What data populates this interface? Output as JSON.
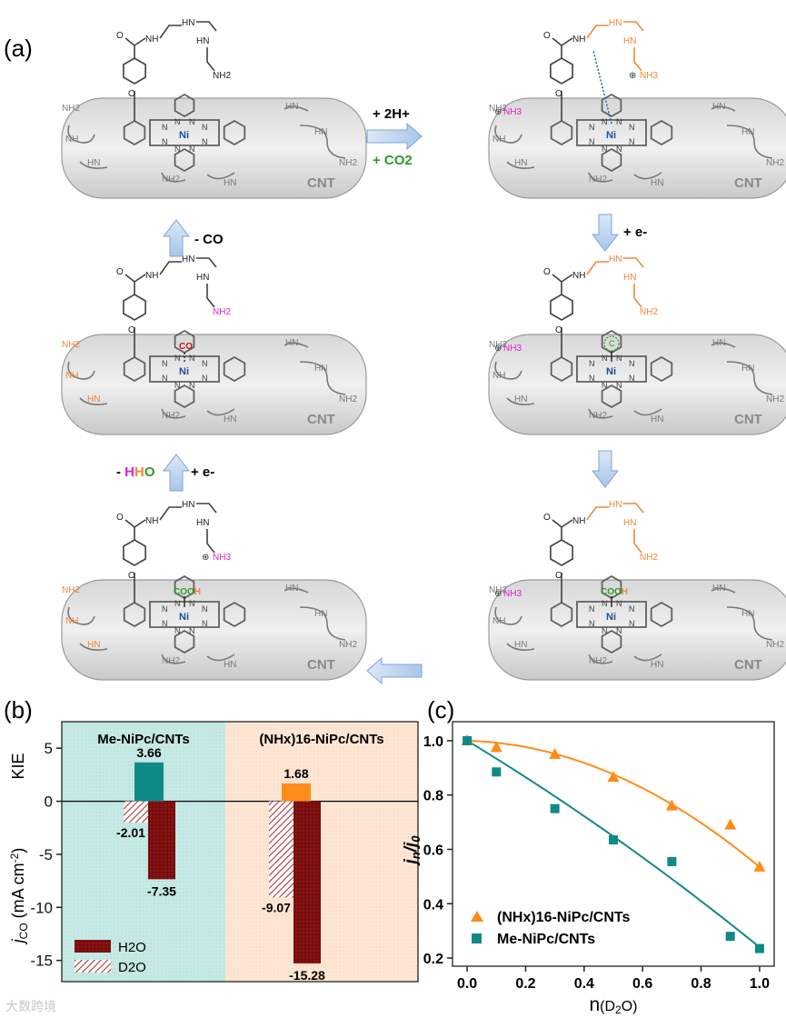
{
  "panel_a": {
    "label": "(a)",
    "cnt_label": "CNT",
    "ni": "Ni",
    "nh2": "NH2",
    "hn": "HN",
    "nh": "NH",
    "nh3": "NH3",
    "oxygen": "O",
    "co": "CO",
    "cooh_c": "COO",
    "cooh_h": "H",
    "h": "H",
    "n": "N",
    "c": "C",
    "step1_line1": "+ 2H+",
    "step1_line2": "+ CO2",
    "step2": "+ e-",
    "step_co": "- CO",
    "step_hho_minus": "- ",
    "step_hho_h1": "H",
    "step_hho_h2": "H",
    "step_hho_o": "O",
    "step_hho_e": "+ e-",
    "colors": {
      "orange": "#f0883a",
      "magenta": "#e020d0",
      "green": "#2a9a2a",
      "red": "#cc1111",
      "blue": "#1f4e99"
    }
  },
  "panel_b": {
    "label": "(b)",
    "group1": "Me-NiPc/CNTs",
    "group2": "(NHx)16-NiPc/CNTs",
    "kie_axis": "KIE",
    "j_axis": "jCO (mA cm-2)",
    "legend_h2o": "H2O",
    "legend_d2o": "D2O",
    "colors": {
      "kie1": "#108a86",
      "kie2": "#ff8c1a",
      "h2o": "#7a0d0d",
      "d2o": "#c05a5a",
      "bg1": "#bfe6e2",
      "bg2": "#fde3cf"
    }
  },
  "panel_c": {
    "label": "(c)",
    "y_axis": "jn/j0",
    "x_axis": "n(D2O)",
    "legend_1": "(NHx)16-NiPc/CNTs",
    "legend_2": "Me-NiPc/CNTs",
    "colors": {
      "orange": "#ff8c1a",
      "teal": "#108a86"
    }
  },
  "watermark": "大数跨境",
  "chart_data": [
    {
      "type": "bar",
      "title": "",
      "categories": [
        "Me-NiPc/CNTs",
        "(NHx)16-NiPc/CNTs"
      ],
      "series": [
        {
          "name": "KIE",
          "values": [
            3.66,
            1.68
          ]
        },
        {
          "name": "H2O",
          "values": [
            -7.35,
            -15.28
          ]
        },
        {
          "name": "D2O",
          "values": [
            -2.01,
            -9.07
          ]
        }
      ],
      "data_labels": [
        "3.66",
        "-2.01",
        "-7.35",
        "1.68",
        "-9.07",
        "-15.28"
      ],
      "ylim": [
        -17,
        7.5
      ],
      "yticks": [
        "5",
        "0",
        "-5",
        "-10",
        "-15"
      ],
      "ylabel_top": "KIE",
      "ylabel_bottom": "jCO (mA cm-2)"
    },
    {
      "type": "scatter",
      "xlabel": "n(D2O)",
      "ylabel": "jn/j0",
      "xlim": [
        -0.05,
        1.05
      ],
      "ylim": [
        0.17,
        1.07
      ],
      "xticks": [
        "0.0",
        "0.2",
        "0.4",
        "0.6",
        "0.8",
        "1.0"
      ],
      "yticks": [
        "0.2",
        "0.4",
        "0.6",
        "0.8",
        "1.0"
      ],
      "series": [
        {
          "name": "(NHx)16-NiPc/CNTs",
          "x": [
            0.0,
            0.1,
            0.3,
            0.5,
            0.7,
            0.9,
            1.0
          ],
          "y": [
            1.0,
            0.975,
            0.95,
            0.865,
            0.76,
            0.69,
            0.535
          ]
        },
        {
          "name": "Me-NiPc/CNTs",
          "x": [
            0.0,
            0.1,
            0.3,
            0.5,
            0.7,
            0.9,
            1.0
          ],
          "y": [
            1.0,
            0.885,
            0.75,
            0.635,
            0.555,
            0.28,
            0.235
          ]
        }
      ]
    }
  ]
}
